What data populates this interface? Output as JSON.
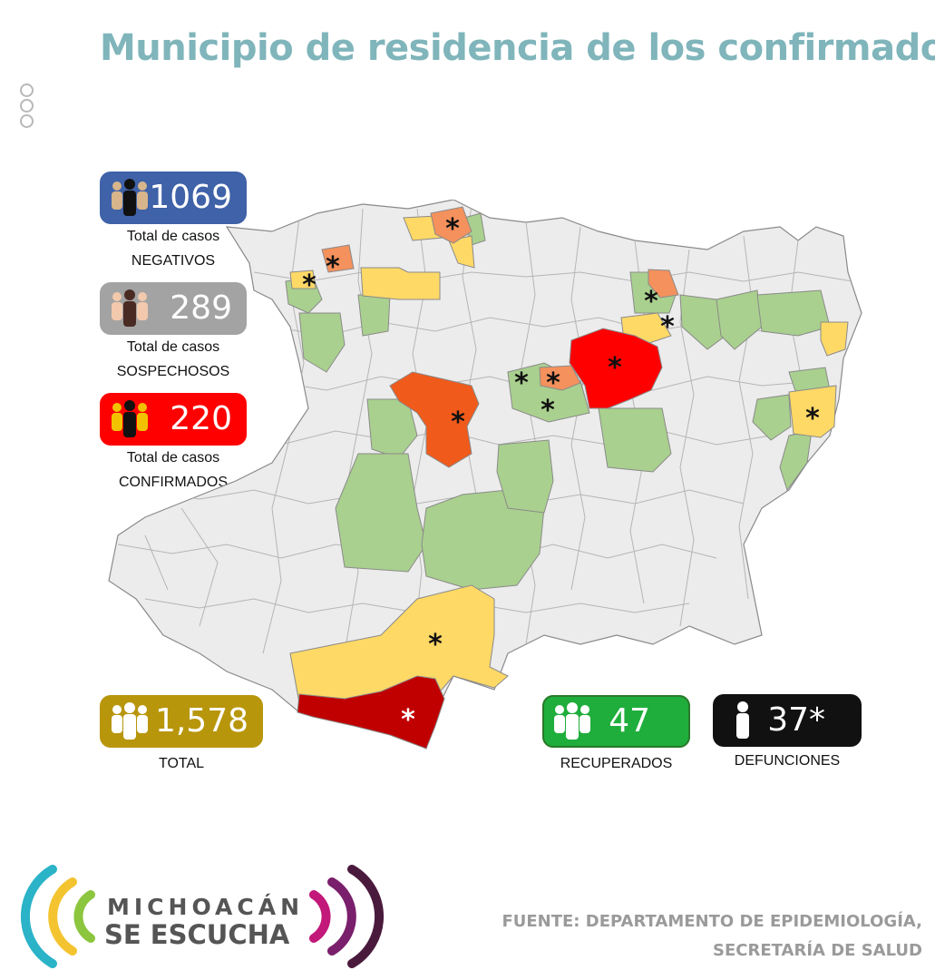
{
  "title": "Municipio de residencia de los confirmados",
  "stats": {
    "negativos": {
      "value": "1069",
      "line1": "Total de casos",
      "line2": "NEGATIVOS",
      "color": "#3f62a8"
    },
    "sospechosos": {
      "value": "289",
      "line1": "Total de casos",
      "line2": "SOSPECHOSOS",
      "color": "#a3a3a3"
    },
    "confirmados": {
      "value": "220",
      "line1": "Total de casos",
      "line2": "CONFIRMADOS",
      "color": "#ff0000"
    },
    "total": {
      "value": "1,578",
      "label": "TOTAL",
      "color": "#b8960c"
    },
    "recuperados": {
      "value": "47",
      "label": "RECUPERADOS",
      "color": "#1fae3c"
    },
    "defunciones": {
      "value": "37*",
      "label": "DEFUNCIONES",
      "color": "#111111"
    }
  },
  "map": {
    "colors": {
      "base": "#ececec",
      "green": "#a9d08e",
      "yellow": "#ffd966",
      "orange": "#f4915c",
      "orange_red": "#f05a1a",
      "red": "#ff0000",
      "dark_red": "#c00000"
    },
    "marker": "*"
  },
  "logo": {
    "line1": "MICHOACÁN",
    "line2": "SE ESCUCHA"
  },
  "source": {
    "line1": "FUENTE: DEPARTAMENTO DE EPIDEMIOLOGÍA,",
    "line2": "SECRETARÍA DE SALUD"
  }
}
